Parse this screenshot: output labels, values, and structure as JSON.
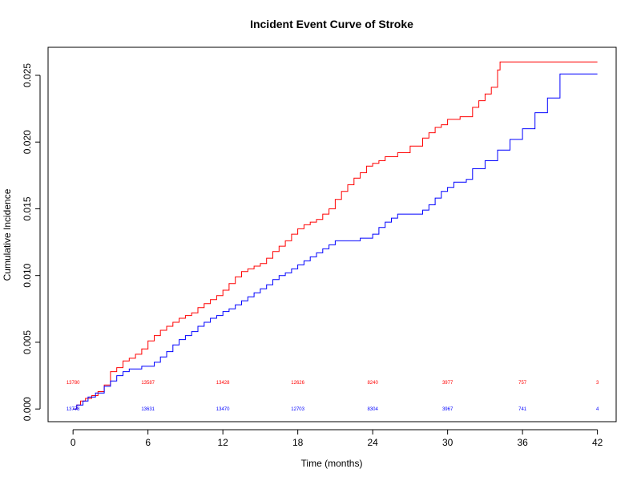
{
  "chart_data": {
    "type": "line",
    "title": "Incident Event Curve of Stroke",
    "xlabel": "Time (months)",
    "ylabel": "Cumulative Incidence",
    "xlim": [
      -2,
      43.5
    ],
    "ylim": [
      -0.00095,
      0.0271
    ],
    "xticks": [
      0,
      6,
      12,
      18,
      24,
      30,
      36,
      42
    ],
    "xtick_labels": [
      "0",
      "6",
      "12",
      "18",
      "24",
      "30",
      "36",
      "42"
    ],
    "yticks": [
      0,
      0.005,
      0.01,
      0.015,
      0.02,
      0.025
    ],
    "ytick_labels": [
      "0.000",
      "0.005",
      "0.010",
      "0.015",
      "0.020",
      "0.025"
    ],
    "grid": false,
    "legend": "none",
    "series": [
      {
        "color": "#ff0000",
        "step": true,
        "points": [
          [
            0,
            0
          ],
          [
            0.3,
            0.0003
          ],
          [
            0.6,
            0.0006
          ],
          [
            1.0,
            0.0008
          ],
          [
            1.5,
            0.001
          ],
          [
            2.0,
            0.0013
          ],
          [
            2.5,
            0.0018
          ],
          [
            3.0,
            0.0028
          ],
          [
            3.5,
            0.0031
          ],
          [
            4.0,
            0.0036
          ],
          [
            4.5,
            0.0038
          ],
          [
            5.0,
            0.0041
          ],
          [
            5.5,
            0.0045
          ],
          [
            6.0,
            0.0051
          ],
          [
            6.5,
            0.0055
          ],
          [
            7.0,
            0.0059
          ],
          [
            7.5,
            0.0062
          ],
          [
            8.0,
            0.0065
          ],
          [
            8.5,
            0.0068
          ],
          [
            9.0,
            0.007
          ],
          [
            9.5,
            0.0072
          ],
          [
            10.0,
            0.0076
          ],
          [
            10.5,
            0.0079
          ],
          [
            11.0,
            0.0082
          ],
          [
            11.5,
            0.0085
          ],
          [
            12.0,
            0.0089
          ],
          [
            12.5,
            0.0094
          ],
          [
            13.0,
            0.0099
          ],
          [
            13.5,
            0.0103
          ],
          [
            14.0,
            0.0105
          ],
          [
            14.5,
            0.0107
          ],
          [
            15.0,
            0.0109
          ],
          [
            15.5,
            0.0113
          ],
          [
            16.0,
            0.0118
          ],
          [
            16.5,
            0.0122
          ],
          [
            17.0,
            0.0126
          ],
          [
            17.5,
            0.0131
          ],
          [
            18.0,
            0.0135
          ],
          [
            18.5,
            0.0138
          ],
          [
            19.0,
            0.014
          ],
          [
            19.5,
            0.0142
          ],
          [
            20.0,
            0.0146
          ],
          [
            20.5,
            0.015
          ],
          [
            21.0,
            0.0157
          ],
          [
            21.5,
            0.0163
          ],
          [
            22.0,
            0.0168
          ],
          [
            22.5,
            0.0173
          ],
          [
            23.0,
            0.0177
          ],
          [
            23.5,
            0.0182
          ],
          [
            24.0,
            0.0184
          ],
          [
            24.5,
            0.0186
          ],
          [
            25.0,
            0.0189
          ],
          [
            26.0,
            0.0192
          ],
          [
            27.0,
            0.0197
          ],
          [
            28.0,
            0.0203
          ],
          [
            28.5,
            0.0207
          ],
          [
            29.0,
            0.0211
          ],
          [
            29.5,
            0.0213
          ],
          [
            30.0,
            0.0217
          ],
          [
            31.0,
            0.0219
          ],
          [
            32.0,
            0.0226
          ],
          [
            32.5,
            0.0231
          ],
          [
            33.0,
            0.0236
          ],
          [
            33.5,
            0.0241
          ],
          [
            34.0,
            0.0254
          ],
          [
            34.2,
            0.026
          ],
          [
            42.0,
            0.026
          ]
        ]
      },
      {
        "color": "#0000ff",
        "step": true,
        "points": [
          [
            0,
            0
          ],
          [
            0.3,
            0.0003
          ],
          [
            0.8,
            0.0006
          ],
          [
            1.2,
            0.0009
          ],
          [
            1.8,
            0.0012
          ],
          [
            2.5,
            0.0017
          ],
          [
            3.0,
            0.0021
          ],
          [
            3.5,
            0.0025
          ],
          [
            4.0,
            0.0028
          ],
          [
            4.5,
            0.003
          ],
          [
            5.5,
            0.0032
          ],
          [
            6.5,
            0.0035
          ],
          [
            7.0,
            0.0039
          ],
          [
            7.5,
            0.0043
          ],
          [
            8.0,
            0.0048
          ],
          [
            8.5,
            0.0052
          ],
          [
            9.0,
            0.0055
          ],
          [
            9.5,
            0.0058
          ],
          [
            10.0,
            0.0062
          ],
          [
            10.5,
            0.0065
          ],
          [
            11.0,
            0.0068
          ],
          [
            11.5,
            0.007
          ],
          [
            12.0,
            0.0073
          ],
          [
            12.5,
            0.0075
          ],
          [
            13.0,
            0.0078
          ],
          [
            13.5,
            0.0081
          ],
          [
            14.0,
            0.0084
          ],
          [
            14.5,
            0.0087
          ],
          [
            15.0,
            0.009
          ],
          [
            15.5,
            0.0093
          ],
          [
            16.0,
            0.0097
          ],
          [
            16.5,
            0.01
          ],
          [
            17.0,
            0.0102
          ],
          [
            17.5,
            0.0105
          ],
          [
            18.0,
            0.0108
          ],
          [
            18.5,
            0.0111
          ],
          [
            19.0,
            0.0114
          ],
          [
            19.5,
            0.0117
          ],
          [
            20.0,
            0.012
          ],
          [
            20.5,
            0.0123
          ],
          [
            21.0,
            0.0126
          ],
          [
            22.0,
            0.0126
          ],
          [
            23.0,
            0.0128
          ],
          [
            24.0,
            0.0131
          ],
          [
            24.5,
            0.0136
          ],
          [
            25.0,
            0.014
          ],
          [
            25.5,
            0.0143
          ],
          [
            26.0,
            0.0146
          ],
          [
            27.0,
            0.0146
          ],
          [
            28.0,
            0.0149
          ],
          [
            28.5,
            0.0153
          ],
          [
            29.0,
            0.0158
          ],
          [
            29.5,
            0.0163
          ],
          [
            30.0,
            0.0166
          ],
          [
            30.5,
            0.017
          ],
          [
            31.5,
            0.0172
          ],
          [
            32.0,
            0.018
          ],
          [
            33.0,
            0.0186
          ],
          [
            34.0,
            0.0194
          ],
          [
            35.0,
            0.0202
          ],
          [
            36.0,
            0.021
          ],
          [
            37.0,
            0.0222
          ],
          [
            38.0,
            0.0233
          ],
          [
            39.0,
            0.0251
          ],
          [
            42.0,
            0.0251
          ]
        ]
      }
    ],
    "risk_table": {
      "times": [
        0,
        6,
        12,
        18,
        24,
        30,
        36,
        42
      ],
      "rows": [
        {
          "color": "#ff0000",
          "y": 0.002,
          "values": [
            "13780",
            "13587",
            "13428",
            "12626",
            "8240",
            "3977",
            "757",
            "3"
          ]
        },
        {
          "color": "#0000ff",
          "y": 0.0,
          "values": [
            "13778",
            "13631",
            "13470",
            "12703",
            "8304",
            "3967",
            "741",
            "4"
          ]
        }
      ]
    }
  }
}
